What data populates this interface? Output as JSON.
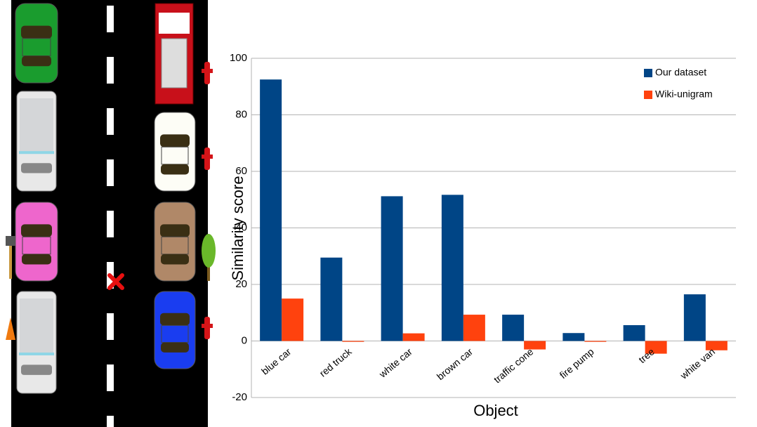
{
  "chart_data": {
    "type": "bar",
    "categories": [
      "blue car",
      "red truck",
      "white car",
      "brown car",
      "traffic cone",
      "fire pump",
      "tree",
      "white van"
    ],
    "series": [
      {
        "name": "Our dataset",
        "color": "#004586",
        "values": [
          92.5,
          29.5,
          51.2,
          51.7,
          9.3,
          2.8,
          5.6,
          16.5
        ]
      },
      {
        "name": "Wiki-unigram",
        "color": "#ff420e",
        "values": [
          15,
          -0.3,
          2.7,
          9.3,
          -3,
          -0.3,
          -4.5,
          -3.3
        ]
      }
    ],
    "ylim": [
      -20,
      100
    ],
    "yticks": [
      -20,
      0,
      20,
      40,
      60,
      80,
      100
    ],
    "y_label": "Similarity score",
    "x_label": "Object",
    "grid": true,
    "legend": "top-right"
  }
}
